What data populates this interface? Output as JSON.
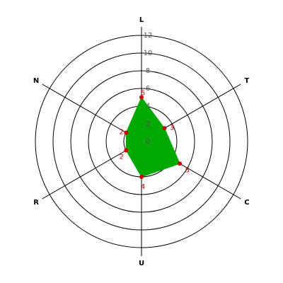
{
  "chart_data": {
    "type": "radar",
    "categories": [
      "L",
      "T",
      "C",
      "U",
      "R",
      "N"
    ],
    "values": [
      5,
      3,
      5,
      4,
      2,
      2
    ],
    "color": "#00a800",
    "marker_color": "#cc0000",
    "label_color": "#b00000",
    "rlim": [
      0,
      12
    ],
    "rticks": [
      0,
      2,
      4,
      6,
      8,
      10,
      12
    ],
    "grid": true
  }
}
